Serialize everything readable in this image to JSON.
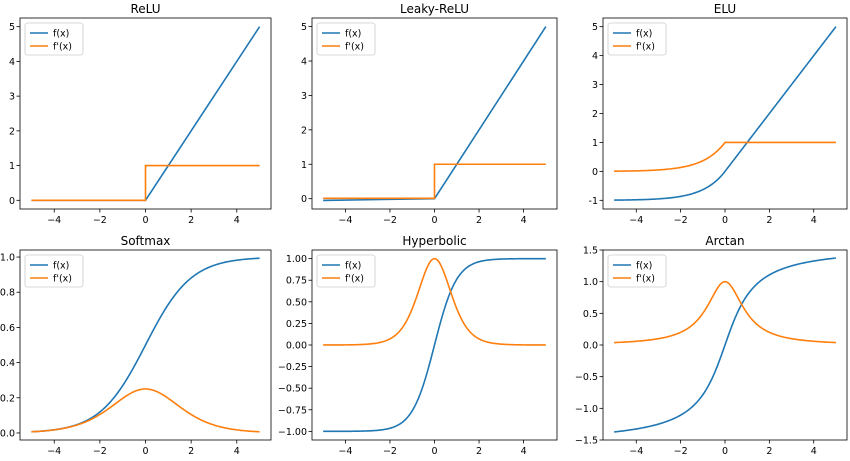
{
  "chart_data": [
    {
      "type": "line",
      "title": "ReLU",
      "fn": "relu",
      "xlim": [
        -5.5,
        5.5
      ],
      "ylim": [
        -0.25,
        5.25
      ],
      "xticks": [
        -4,
        -2,
        0,
        2,
        4
      ],
      "yticks": [
        0,
        1,
        2,
        3,
        4,
        5
      ],
      "series": [
        {
          "name": "f(x)",
          "color": "#1f77b4",
          "x": [
            -5,
            0,
            5
          ],
          "y": [
            0,
            0,
            5
          ]
        },
        {
          "name": "f'(x)",
          "color": "#ff7f0e",
          "x": [
            -5,
            0,
            0,
            5
          ],
          "y": [
            0,
            0,
            1,
            1
          ]
        }
      ],
      "legend": "upper-left"
    },
    {
      "type": "line",
      "title": "Leaky-ReLU",
      "fn": "leaky",
      "xlim": [
        -5.5,
        5.5
      ],
      "ylim": [
        -0.3,
        5.25
      ],
      "xticks": [
        -4,
        -2,
        0,
        2,
        4
      ],
      "yticks": [
        0,
        1,
        2,
        3,
        4,
        5
      ],
      "series": [
        {
          "name": "f(x)",
          "color": "#1f77b4",
          "x": [
            -5,
            0,
            5
          ],
          "y": [
            -0.05,
            0,
            5
          ]
        },
        {
          "name": "f'(x)",
          "color": "#ff7f0e",
          "x": [
            -5,
            0,
            0,
            5
          ],
          "y": [
            0.01,
            0.01,
            1,
            1
          ]
        }
      ],
      "legend": "upper-left"
    },
    {
      "type": "line",
      "title": "ELU",
      "fn": "elu",
      "xlim": [
        -5.5,
        5.5
      ],
      "ylim": [
        -1.3,
        5.3
      ],
      "xticks": [
        -4,
        -2,
        0,
        2,
        4
      ],
      "yticks": [
        -1,
        0,
        1,
        2,
        3,
        4,
        5
      ],
      "series": [
        {
          "name": "f(x)",
          "color": "#1f77b4",
          "x": [
            -5,
            -4,
            -3,
            -2,
            -1.5,
            -1,
            -0.5,
            0,
            5
          ],
          "y": [
            -0.99,
            -0.98,
            -0.95,
            -0.86,
            -0.78,
            -0.63,
            -0.39,
            0,
            5
          ]
        },
        {
          "name": "f'(x)",
          "color": "#ff7f0e",
          "x": [
            -5,
            -4,
            -3,
            -2,
            -1.5,
            -1,
            -0.5,
            0,
            5
          ],
          "y": [
            0.01,
            0.02,
            0.05,
            0.14,
            0.22,
            0.37,
            0.61,
            1,
            1
          ]
        }
      ],
      "legend": "upper-left"
    },
    {
      "type": "line",
      "title": "Softmax",
      "fn": "sigmoid",
      "xlim": [
        -5.5,
        5.5
      ],
      "ylim": [
        -0.04,
        1.04
      ],
      "xticks": [
        -4,
        -2,
        0,
        2,
        4
      ],
      "yticks": [
        0.0,
        0.2,
        0.4,
        0.6,
        0.8,
        1.0
      ],
      "yticklabels": [
        "0.0",
        "0.2",
        "0.4",
        "0.6",
        "0.8",
        "1.0"
      ],
      "series": [
        {
          "name": "f(x)",
          "color": "#1f77b4",
          "x": [
            -5,
            -4,
            -3,
            -2,
            -1,
            0,
            1,
            2,
            3,
            4,
            5
          ],
          "y": [
            0.007,
            0.018,
            0.047,
            0.119,
            0.269,
            0.5,
            0.731,
            0.881,
            0.953,
            0.982,
            0.993
          ]
        },
        {
          "name": "f'(x)",
          "color": "#ff7f0e",
          "x": [
            -5,
            -4,
            -3,
            -2,
            -1,
            0,
            1,
            2,
            3,
            4,
            5
          ],
          "y": [
            0.007,
            0.018,
            0.045,
            0.105,
            0.197,
            0.25,
            0.197,
            0.105,
            0.045,
            0.018,
            0.007
          ]
        }
      ],
      "legend": "upper-left"
    },
    {
      "type": "line",
      "title": "Hyperbolic",
      "fn": "tanh",
      "xlim": [
        -5.5,
        5.5
      ],
      "ylim": [
        -1.1,
        1.1
      ],
      "xticks": [
        -4,
        -2,
        0,
        2,
        4
      ],
      "yticks": [
        -1.0,
        -0.75,
        -0.5,
        -0.25,
        0.0,
        0.25,
        0.5,
        0.75,
        1.0
      ],
      "yticklabels": [
        "−1.00",
        "−0.75",
        "−0.50",
        "−0.25",
        "0.00",
        "0.25",
        "0.50",
        "0.75",
        "1.00"
      ],
      "series": [
        {
          "name": "f(x)",
          "color": "#1f77b4",
          "x": [
            -5,
            -3,
            -2,
            -1,
            -0.5,
            0,
            0.5,
            1,
            2,
            3,
            5
          ],
          "y": [
            -1.0,
            -0.995,
            -0.964,
            -0.762,
            -0.462,
            0,
            0.462,
            0.762,
            0.964,
            0.995,
            1.0
          ]
        },
        {
          "name": "f'(x)",
          "color": "#ff7f0e",
          "x": [
            -5,
            -3,
            -2,
            -1,
            -0.5,
            0,
            0.5,
            1,
            2,
            3,
            5
          ],
          "y": [
            0.0,
            0.01,
            0.071,
            0.42,
            0.786,
            1.0,
            0.786,
            0.42,
            0.071,
            0.01,
            0.0
          ]
        }
      ],
      "legend": "upper-left"
    },
    {
      "type": "line",
      "title": "Arctan",
      "fn": "arctan",
      "xlim": [
        -5.5,
        5.5
      ],
      "ylim": [
        -1.5,
        1.5
      ],
      "xticks": [
        -4,
        -2,
        0,
        2,
        4
      ],
      "yticks": [
        -1.5,
        -1.0,
        -0.5,
        0.0,
        0.5,
        1.0,
        1.5
      ],
      "yticklabels": [
        "−1.5",
        "−1.0",
        "−0.5",
        "0.0",
        "0.5",
        "1.0",
        "1.5"
      ],
      "series": [
        {
          "name": "f(x)",
          "color": "#1f77b4",
          "x": [
            -5,
            -3,
            -2,
            -1,
            -0.5,
            0,
            0.5,
            1,
            2,
            3,
            5
          ],
          "y": [
            -1.373,
            -1.249,
            -1.107,
            -0.785,
            -0.464,
            0,
            0.464,
            0.785,
            1.107,
            1.249,
            1.373
          ]
        },
        {
          "name": "f'(x)",
          "color": "#ff7f0e",
          "x": [
            -5,
            -3,
            -2,
            -1,
            -0.5,
            0,
            0.5,
            1,
            2,
            3,
            5
          ],
          "y": [
            0.038,
            0.1,
            0.2,
            0.5,
            0.8,
            1.0,
            0.8,
            0.5,
            0.2,
            0.1,
            0.038
          ]
        }
      ],
      "legend": "upper-left"
    }
  ]
}
